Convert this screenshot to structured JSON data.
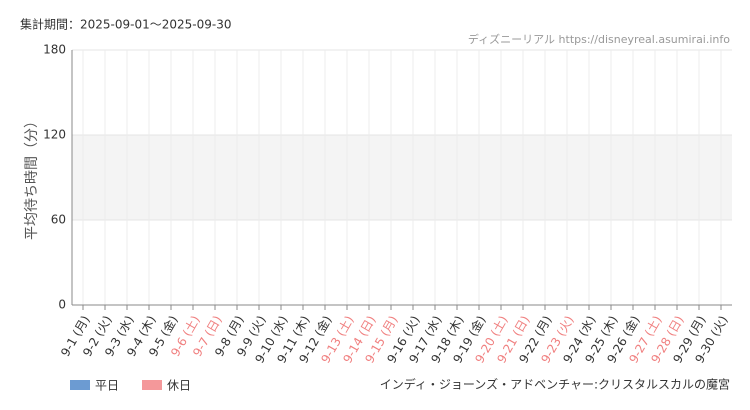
{
  "chart_data": {
    "type": "bar",
    "title": "集計期間：2025-09-01～2025-09-30",
    "source": "ディズニーリアル https://disneyreal.asumirai.info",
    "y_label": "平均待ち時間（分）",
    "attraction": "インディ・ジョーンズ・アドベンチャー:クリスタルスカルの魔宮",
    "categories": [
      "9-1 (月)",
      "9-2 (火)",
      "9-3 (水)",
      "9-4 (木)",
      "9-5 (金)",
      "9-6 (土)",
      "9-7 (日)",
      "9-8 (月)",
      "9-9 (火)",
      "9-10 (水)",
      "9-11 (木)",
      "9-12 (金)",
      "9-13 (土)",
      "9-14 (日)",
      "9-15 (月)",
      "9-16 (火)",
      "9-17 (水)",
      "9-18 (木)",
      "9-19 (金)",
      "9-20 (土)",
      "9-21 (日)",
      "9-22 (月)",
      "9-23 (火)",
      "9-24 (水)",
      "9-25 (木)",
      "9-26 (金)",
      "9-27 (土)",
      "9-28 (日)",
      "9-29 (月)",
      "9-30 (火)"
    ],
    "label_colors": [
      "#333",
      "#333",
      "#333",
      "#333",
      "#333",
      "#f08080",
      "#f08080",
      "#333",
      "#333",
      "#333",
      "#333",
      "#333",
      "#f08080",
      "#f08080",
      "#f08080",
      "#333",
      "#333",
      "#333",
      "#333",
      "#f08080",
      "#f08080",
      "#333",
      "#f08080",
      "#333",
      "#333",
      "#333",
      "#f08080",
      "#f08080",
      "#333",
      "#333"
    ],
    "series": [
      {
        "name": "平日",
        "color": "#6c9bd2"
      },
      {
        "name": "休日",
        "color": "#f4989a"
      }
    ],
    "ylim": [
      0,
      180
    ],
    "yticks": [
      0,
      60,
      120,
      180
    ],
    "band": {
      "from": 60,
      "to": 120,
      "color": "#f4f4f4"
    },
    "grid": true
  }
}
